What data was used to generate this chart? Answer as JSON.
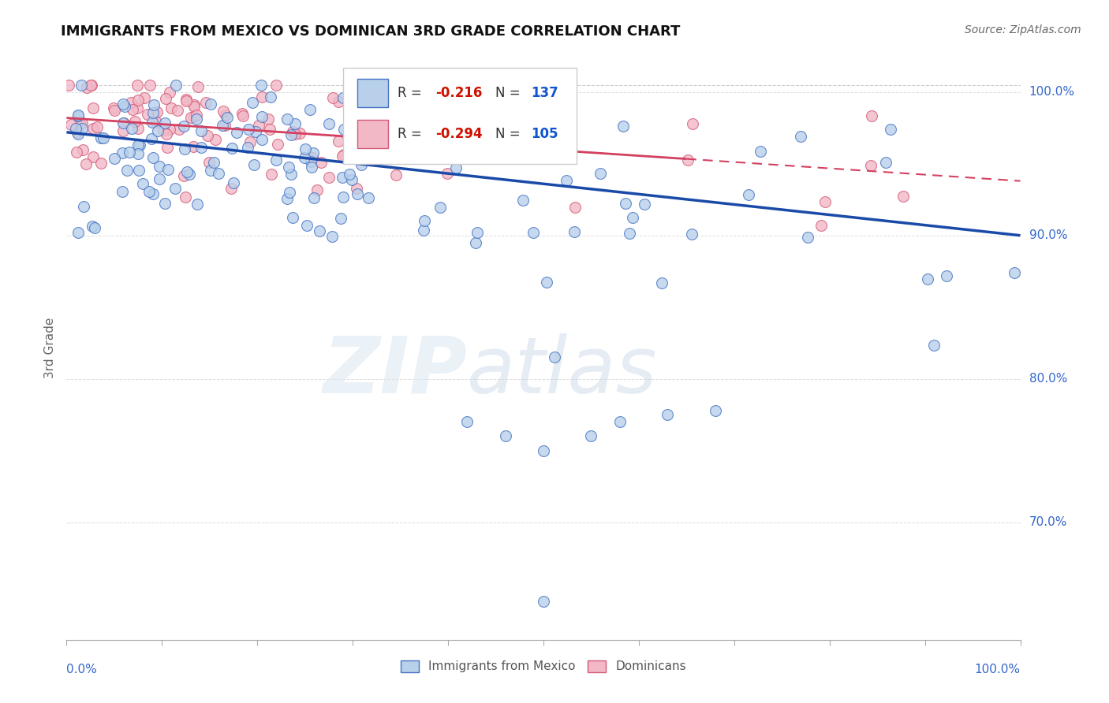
{
  "title": "IMMIGRANTS FROM MEXICO VS DOMINICAN 3RD GRADE CORRELATION CHART",
  "source": "Source: ZipAtlas.com",
  "ylabel": "3rd Grade",
  "xmin": 0.0,
  "xmax": 1.0,
  "ymin": 0.618,
  "ymax": 1.025,
  "blue_R": -0.216,
  "blue_N": 137,
  "pink_R": -0.294,
  "pink_N": 105,
  "blue_color": "#b8d0ea",
  "blue_edge_color": "#4472c4",
  "pink_color": "#f2b8c6",
  "pink_edge_color": "#d45a78",
  "blue_line_color": "#1a4aa8",
  "pink_line_color": "#d44060",
  "marker_size": 100,
  "legend_R_color": "#cc1100",
  "legend_N_color": "#1155cc",
  "blue_trend_y_start": 0.972,
  "blue_trend_y_end": 0.9,
  "pink_trend_y_start": 0.982,
  "pink_trend_y_end": 0.938,
  "hline_y": 1.005,
  "hline_color": "#cccccc",
  "background_color": "#ffffff",
  "title_fontsize": 13,
  "source_fontsize": 10,
  "yticks": [
    0.7,
    0.8,
    0.9,
    1.0
  ],
  "ytick_labels": [
    "70.0%",
    "80.0%",
    "90.0%",
    "100.0%"
  ]
}
